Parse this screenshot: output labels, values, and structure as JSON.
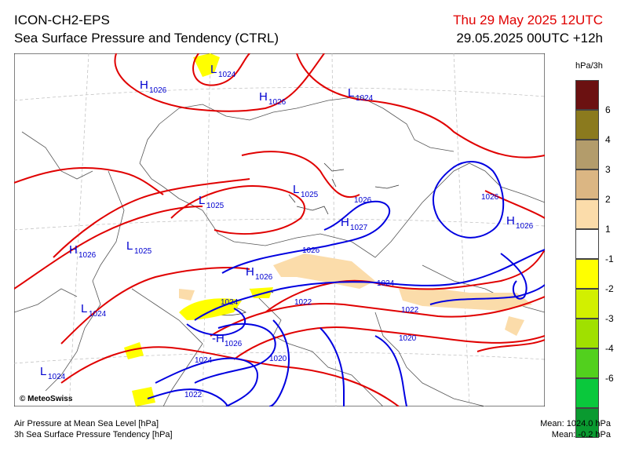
{
  "header": {
    "model": "ICON-CH2-EPS",
    "product": "Sea Surface Pressure and Tendency (CTRL)",
    "date": "Thu 29 May 2025 12UTC",
    "run": "29.05.2025 00UTC +12h"
  },
  "legend": {
    "unit": "hPa/3h",
    "colors": [
      "#6b1111",
      "#8b7a1e",
      "#b39c6b",
      "#dbb683",
      "#fbdcaa",
      "#ffffff",
      "#ffff00",
      "#d2f000",
      "#a0e000",
      "#52d01e",
      "#0ac83c",
      "#0a9a30"
    ],
    "ticks": [
      "6",
      "4",
      "3",
      "2",
      "1",
      "-1",
      "-2",
      "-3",
      "-4",
      "-6"
    ]
  },
  "map": {
    "copyright": "© MeteoSwiss",
    "labels": [
      {
        "type": "H",
        "value": "1026",
        "color": "blue"
      },
      {
        "type": "L",
        "value": "1024",
        "color": "blue"
      },
      {
        "type": "H",
        "value": "1026",
        "color": "blue"
      },
      {
        "type": "L",
        "value": "1024",
        "color": "blue"
      },
      {
        "type": "L",
        "value": "1025",
        "color": "blue"
      },
      {
        "type": "L",
        "value": "1025",
        "color": "blue"
      },
      {
        "type": "H",
        "value": "1027",
        "color": "blue"
      },
      {
        "type": "H",
        "value": "1026",
        "color": "blue"
      },
      {
        "type": "L",
        "value": "1025",
        "color": "blue"
      },
      {
        "type": "H",
        "value": "1026",
        "color": "blue"
      },
      {
        "type": "H",
        "value": "1026",
        "color": "blue"
      },
      {
        "type": "L",
        "value": "1024",
        "color": "blue"
      },
      {
        "type": "H",
        "value": "1026",
        "color": "blue"
      },
      {
        "type": "L",
        "value": "1024",
        "color": "blue"
      }
    ],
    "isobar_labels": [
      "1026",
      "1026",
      "1024",
      "1024",
      "1022",
      "1022",
      "1024",
      "1020",
      "1020",
      "1022",
      "1026"
    ]
  },
  "footer": {
    "line1": "Air Pressure at Mean Sea Level [hPa]",
    "line2": "3h Sea Surface Pressure Tendency [hPa]",
    "mean1": "Mean: 1024.0 hPa",
    "mean2": "Mean:   -0.2 hPa"
  }
}
